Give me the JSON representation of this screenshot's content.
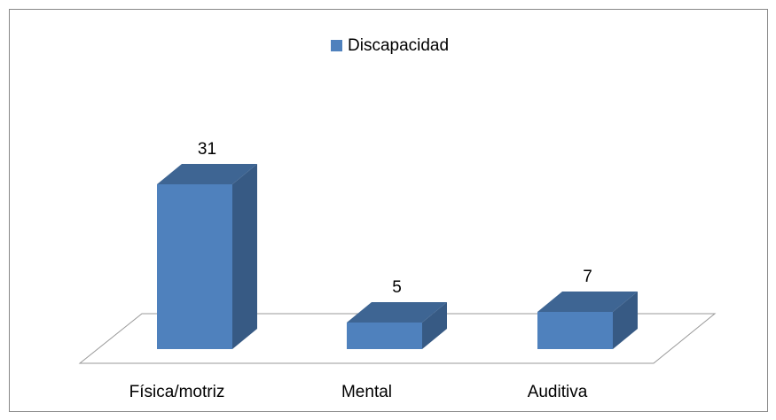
{
  "chart_data": {
    "type": "bar3d",
    "categories": [
      "Física/motriz",
      "Mental",
      "Auditiva"
    ],
    "series": [
      {
        "name": "Discapacidad",
        "color": "#4f81bd",
        "values": [
          31,
          5,
          7
        ]
      }
    ],
    "legend": "top"
  }
}
